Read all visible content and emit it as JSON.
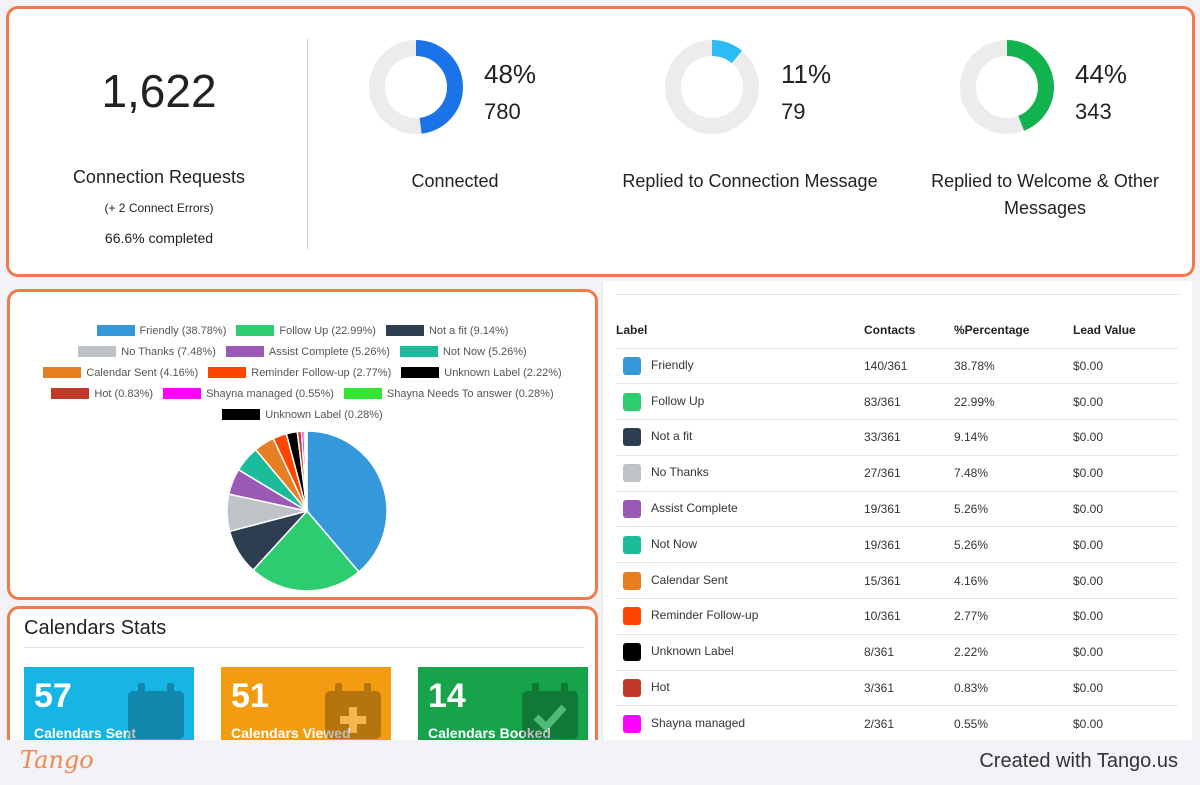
{
  "stats": {
    "requests": {
      "value": "1,622",
      "label": "Connection Requests",
      "errors": "(+ 2 Connect Errors)",
      "completed": "66.6% completed"
    },
    "donuts": [
      {
        "percent": "48%",
        "count": "780",
        "label": "Connected",
        "color": "#1a73e8",
        "fraction": 0.48
      },
      {
        "percent": "11%",
        "count": "79",
        "label": "Replied to Connection Message",
        "color": "#2bbcf5",
        "fraction": 0.11
      },
      {
        "percent": "44%",
        "count": "343",
        "label": "Replied to Welcome & Other Messages",
        "color": "#12b24f",
        "fraction": 0.44
      }
    ]
  },
  "legend": [
    {
      "label": "Friendly (38.78%)",
      "color": "#3498db"
    },
    {
      "label": "Follow Up (22.99%)",
      "color": "#2ecc71"
    },
    {
      "label": "Not a fit (9.14%)",
      "color": "#2c3e50"
    },
    {
      "label": "No Thanks (7.48%)",
      "color": "#bdc3c7"
    },
    {
      "label": "Assist Complete (5.26%)",
      "color": "#9b59b6"
    },
    {
      "label": "Not Now (5.26%)",
      "color": "#1abc9c"
    },
    {
      "label": "Calendar Sent (4.16%)",
      "color": "#e67e22"
    },
    {
      "label": "Reminder Follow-up (2.77%)",
      "color": "#ff4500"
    },
    {
      "label": "Unknown Label (2.22%)",
      "color": "#000000"
    },
    {
      "label": "Hot (0.83%)",
      "color": "#c0392b"
    },
    {
      "label": "Shayna managed (0.55%)",
      "color": "#ff00ff"
    },
    {
      "label": "Shayna Needs To answer (0.28%)",
      "color": "#32e632"
    },
    {
      "label": "Unknown Label (0.28%)",
      "color": "#000000"
    }
  ],
  "chart_data": {
    "type": "pie",
    "categories": [
      "Friendly",
      "Follow Up",
      "Not a fit",
      "No Thanks",
      "Assist Complete",
      "Not Now",
      "Calendar Sent",
      "Reminder Follow-up",
      "Unknown Label",
      "Hot",
      "Shayna managed",
      "Shayna Needs To answer",
      "Unknown Label"
    ],
    "values": [
      38.78,
      22.99,
      9.14,
      7.48,
      5.26,
      5.26,
      4.16,
      2.77,
      2.22,
      0.83,
      0.55,
      0.28,
      0.28
    ],
    "colors": [
      "#3498db",
      "#2ecc71",
      "#2c3e50",
      "#bdc3c7",
      "#9b59b6",
      "#1abc9c",
      "#e67e22",
      "#ff4500",
      "#000000",
      "#c0392b",
      "#ff00ff",
      "#32e632",
      "#000000"
    ]
  },
  "calendars": {
    "title": "Calendars Stats",
    "cards": [
      {
        "value": "57",
        "label": "Calendars Sent",
        "color": "#17b5e6"
      },
      {
        "value": "51",
        "label": "Calendars Viewed",
        "color": "#f39c12"
      },
      {
        "value": "14",
        "label": "Calendars Booked",
        "color": "#16a34a"
      }
    ]
  },
  "table": {
    "headers": [
      "Label",
      "Contacts",
      "%Percentage",
      "Lead Value"
    ],
    "rows": [
      {
        "label": "Friendly",
        "contacts": "140/361",
        "pct": "38.78%",
        "value": "$0.00",
        "color": "#3498db"
      },
      {
        "label": "Follow Up",
        "contacts": "83/361",
        "pct": "22.99%",
        "value": "$0.00",
        "color": "#2ecc71"
      },
      {
        "label": "Not a fit",
        "contacts": "33/361",
        "pct": "9.14%",
        "value": "$0.00",
        "color": "#2c3e50"
      },
      {
        "label": "No Thanks",
        "contacts": "27/361",
        "pct": "7.48%",
        "value": "$0.00",
        "color": "#bdc3c7"
      },
      {
        "label": "Assist Complete",
        "contacts": "19/361",
        "pct": "5.26%",
        "value": "$0.00",
        "color": "#9b59b6"
      },
      {
        "label": "Not Now",
        "contacts": "19/361",
        "pct": "5.26%",
        "value": "$0.00",
        "color": "#1abc9c"
      },
      {
        "label": "Calendar Sent",
        "contacts": "15/361",
        "pct": "4.16%",
        "value": "$0.00",
        "color": "#e67e22"
      },
      {
        "label": "Reminder Follow-up",
        "contacts": "10/361",
        "pct": "2.77%",
        "value": "$0.00",
        "color": "#ff4500"
      },
      {
        "label": "Unknown Label",
        "contacts": "8/361",
        "pct": "2.22%",
        "value": "$0.00",
        "color": "#000000"
      },
      {
        "label": "Hot",
        "contacts": "3/361",
        "pct": "0.83%",
        "value": "$0.00",
        "color": "#c0392b"
      },
      {
        "label": "Shayna managed",
        "contacts": "2/361",
        "pct": "0.55%",
        "value": "$0.00",
        "color": "#ff00ff"
      }
    ]
  },
  "footer": {
    "logo": "Tango",
    "credit": "Created with Tango.us"
  }
}
